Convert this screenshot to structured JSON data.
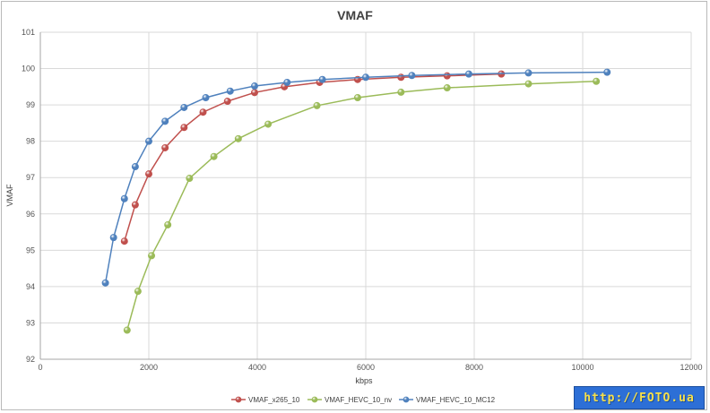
{
  "chart_data": {
    "type": "line",
    "title": "VMAF",
    "xlabel": "kbps",
    "ylabel": "VMAF",
    "xlim": [
      0,
      12000
    ],
    "ylim": [
      92,
      101
    ],
    "xticks": [
      0,
      2000,
      4000,
      6000,
      8000,
      10000,
      12000
    ],
    "yticks": [
      92,
      93,
      94,
      95,
      96,
      97,
      98,
      99,
      100,
      101
    ],
    "grid": true,
    "legend_position": "bottom",
    "series": [
      {
        "name": "VMAF_x265_10",
        "color": "#c0504d",
        "x": [
          1550,
          1750,
          2000,
          2300,
          2650,
          3000,
          3450,
          3950,
          4500,
          5150,
          5850,
          6650,
          7500,
          8500
        ],
        "y": [
          95.25,
          96.25,
          97.1,
          97.82,
          98.38,
          98.8,
          99.1,
          99.34,
          99.5,
          99.62,
          99.7,
          99.76,
          99.8,
          99.85
        ]
      },
      {
        "name": "VMAF_HEVC_10_nv",
        "color": "#9bbb59",
        "x": [
          1600,
          1800,
          2050,
          2350,
          2750,
          3200,
          3650,
          4200,
          5100,
          5850,
          6650,
          7500,
          9000,
          10250
        ],
        "y": [
          92.8,
          93.87,
          94.85,
          95.7,
          96.98,
          97.58,
          98.07,
          98.47,
          98.98,
          99.2,
          99.35,
          99.47,
          99.58,
          99.65
        ]
      },
      {
        "name": "VMAF_HEVC_10_MC12",
        "color": "#4f81bd",
        "x": [
          1200,
          1350,
          1550,
          1750,
          2000,
          2300,
          2650,
          3050,
          3500,
          3950,
          4550,
          5200,
          6000,
          6850,
          7900,
          9000,
          10450
        ],
        "y": [
          94.1,
          95.35,
          96.42,
          97.3,
          98.0,
          98.55,
          98.93,
          99.2,
          99.38,
          99.52,
          99.62,
          99.7,
          99.76,
          99.81,
          99.85,
          99.88,
          99.9
        ]
      }
    ]
  },
  "watermark": {
    "text": "http://FOTO.ua"
  }
}
